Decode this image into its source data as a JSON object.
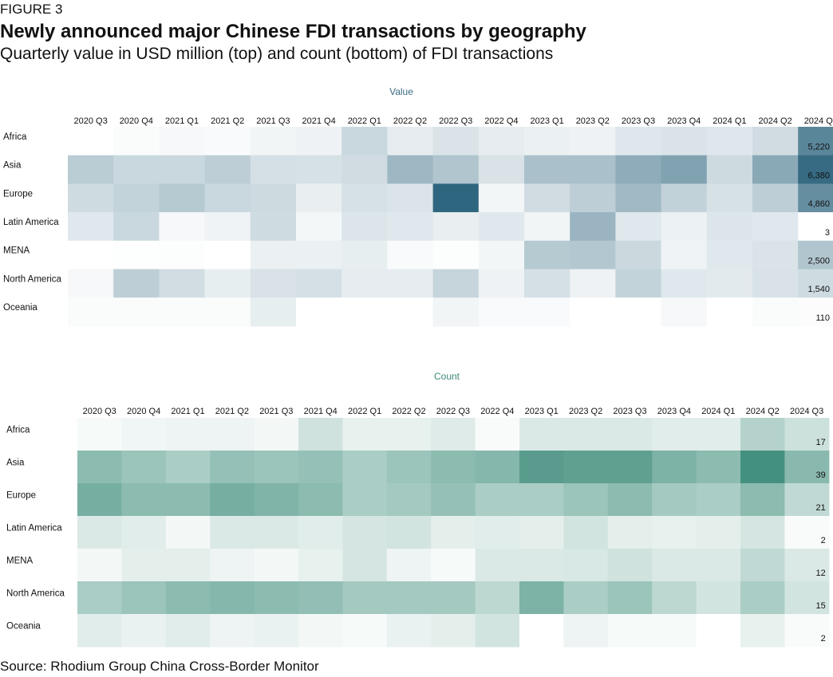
{
  "header": {
    "figure_label": "FIGURE 3",
    "title": "Newly announced major Chinese FDI transactions by geography",
    "subtitle": "Quarterly value in USD million (top) and count (bottom) of FDI transactions"
  },
  "footer": {
    "source": "Source: Rhodium Group China Cross-Border Monitor"
  },
  "chart_data": [
    {
      "type": "heatmap",
      "title": "Value",
      "color": "#245e78",
      "columns": [
        "2020 Q3",
        "2020 Q4",
        "2021 Q1",
        "2021 Q2",
        "2021 Q3",
        "2021 Q4",
        "2022 Q1",
        "2022 Q2",
        "2022 Q3",
        "2022 Q4",
        "2023 Q1",
        "2023 Q2",
        "2023 Q3",
        "2023 Q4",
        "2024 Q1",
        "2024 Q2",
        "2024 Q3"
      ],
      "rows": [
        "Africa",
        "Asia",
        "Europe",
        "Latin America",
        "MENA",
        "North America",
        "Oceania"
      ],
      "values": [
        [
          0,
          150,
          300,
          200,
          450,
          550,
          1700,
          800,
          1200,
          800,
          650,
          550,
          1050,
          1200,
          1050,
          1500,
          5220
        ],
        [
          2200,
          1700,
          1700,
          2100,
          1350,
          1300,
          1500,
          3100,
          2500,
          1250,
          2700,
          2700,
          3600,
          4000,
          1600,
          3700,
          6380
        ],
        [
          1550,
          1900,
          2300,
          1700,
          1600,
          700,
          1300,
          1150,
          6600,
          400,
          1500,
          2100,
          3000,
          1950,
          1300,
          2100,
          4860
        ],
        [
          1000,
          1700,
          300,
          500,
          1550,
          350,
          1100,
          1000,
          700,
          1000,
          450,
          3200,
          1000,
          600,
          1100,
          1000,
          3
        ],
        [
          0,
          50,
          100,
          0,
          650,
          650,
          750,
          200,
          100,
          400,
          2300,
          2400,
          1650,
          500,
          1000,
          1200,
          2500
        ],
        [
          300,
          2100,
          1450,
          750,
          1250,
          1350,
          800,
          800,
          1800,
          550,
          1350,
          550,
          1900,
          1000,
          900,
          1250,
          1540
        ],
        [
          150,
          150,
          150,
          150,
          750,
          0,
          0,
          0,
          450,
          200,
          200,
          0,
          0,
          300,
          0,
          150,
          110
        ]
      ],
      "labels_last_column": [
        "5,220",
        "6,380",
        "4,860",
        "3",
        "2,500",
        "1,540",
        "110"
      ]
    },
    {
      "type": "heatmap",
      "title": "Count",
      "color": "#3a8a78",
      "columns": [
        "2020 Q3",
        "2020 Q4",
        "2021 Q1",
        "2021 Q2",
        "2021 Q3",
        "2021 Q4",
        "2022 Q1",
        "2022 Q2",
        "2022 Q3",
        "2022 Q4",
        "2023 Q1",
        "2023 Q2",
        "2023 Q3",
        "2023 Q4",
        "2024 Q1",
        "2024 Q2",
        "2024 Q3"
      ],
      "rows": [
        "Africa",
        "Asia",
        "Europe",
        "Latin America",
        "MENA",
        "North America",
        "Oceania"
      ],
      "values": [
        [
          3,
          5,
          6,
          6,
          4,
          16,
          8,
          8,
          11,
          2,
          12,
          12,
          12,
          10,
          10,
          25,
          17
        ],
        [
          38,
          33,
          28,
          35,
          33,
          35,
          28,
          33,
          38,
          40,
          55,
          53,
          53,
          43,
          38,
          62,
          39
        ],
        [
          45,
          38,
          38,
          45,
          42,
          38,
          28,
          30,
          35,
          28,
          28,
          33,
          38,
          30,
          28,
          38,
          21
        ],
        [
          12,
          10,
          4,
          12,
          12,
          10,
          14,
          15,
          9,
          10,
          9,
          15,
          9,
          8,
          9,
          14,
          2
        ],
        [
          4,
          9,
          9,
          6,
          4,
          8,
          14,
          6,
          3,
          12,
          12,
          13,
          16,
          12,
          12,
          21,
          12
        ],
        [
          28,
          33,
          38,
          40,
          38,
          36,
          30,
          30,
          30,
          22,
          43,
          28,
          33,
          22,
          15,
          28,
          15
        ],
        [
          10,
          7,
          10,
          6,
          7,
          4,
          3,
          7,
          9,
          15,
          0,
          6,
          3,
          3,
          0,
          8,
          2
        ]
      ],
      "labels_last_column": [
        "17",
        "39",
        "21",
        "2",
        "12",
        "15",
        "2"
      ]
    }
  ]
}
